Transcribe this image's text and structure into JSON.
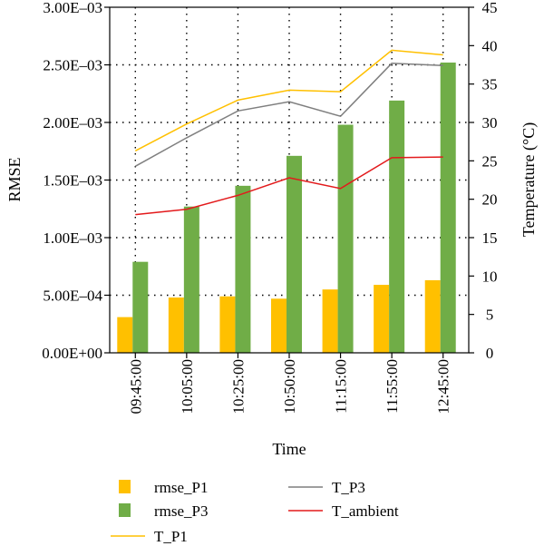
{
  "chart_data": {
    "type": "bar",
    "xlabel": "Time",
    "categories": [
      "09:45:00",
      "10:05:00",
      "10:25:00",
      "10:50:00",
      "11:15:00",
      "11:55:00",
      "12:45:00"
    ],
    "y_left": {
      "label": "RMSE",
      "range": [
        0,
        0.003
      ],
      "ticks": [
        0,
        0.0005,
        0.001,
        0.0015,
        0.002,
        0.0025,
        0.003
      ],
      "tick_labels": [
        "0.00E+00",
        "5.00E–04",
        "1.00E–03",
        "1.50E–03",
        "2.00E–03",
        "2.50E–03",
        "3.00E–03"
      ]
    },
    "y_right": {
      "label": "Temperature (°C)",
      "range": [
        0,
        45
      ],
      "ticks": [
        0,
        5,
        10,
        15,
        20,
        25,
        30,
        35,
        40,
        45
      ],
      "tick_labels": [
        "0",
        "5",
        "10",
        "15",
        "20",
        "25",
        "30",
        "35",
        "40",
        "45"
      ]
    },
    "grid": "dotted",
    "bar_series": [
      {
        "name": "rmse_P1",
        "color": "#ffc000",
        "axis": "left",
        "values": [
          0.00031,
          0.00048,
          0.00049,
          0.00047,
          0.00055,
          0.00059,
          0.00063
        ]
      },
      {
        "name": "rmse_P3",
        "color": "#70ad47",
        "axis": "left",
        "values": [
          0.00079,
          0.00127,
          0.00145,
          0.00171,
          0.00198,
          0.00219,
          0.00252
        ]
      }
    ],
    "line_series": [
      {
        "name": "T_P1",
        "color": "#ffc000",
        "axis": "right",
        "values": [
          26.3,
          29.8,
          32.9,
          34.2,
          34.0,
          39.4,
          38.8
        ]
      },
      {
        "name": "T_P3",
        "color": "#7f7f7f",
        "axis": "right",
        "values": [
          24.3,
          28.0,
          31.5,
          32.7,
          30.8,
          37.7,
          37.4
        ]
      },
      {
        "name": "T_ambient",
        "color": "#e31a1c",
        "axis": "right",
        "values": [
          18.0,
          18.7,
          20.5,
          22.8,
          21.4,
          25.4,
          25.5
        ]
      }
    ],
    "legend": [
      {
        "name": "rmse_P1",
        "kind": "bar",
        "color": "#ffc000"
      },
      {
        "name": "T_P3",
        "kind": "line",
        "color": "#7f7f7f"
      },
      {
        "name": "rmse_P3",
        "kind": "bar",
        "color": "#70ad47"
      },
      {
        "name": "T_ambient",
        "kind": "line",
        "color": "#e31a1c"
      },
      {
        "name": "T_P1",
        "kind": "line",
        "color": "#ffc000"
      }
    ],
    "legend_placement": "bottom"
  }
}
